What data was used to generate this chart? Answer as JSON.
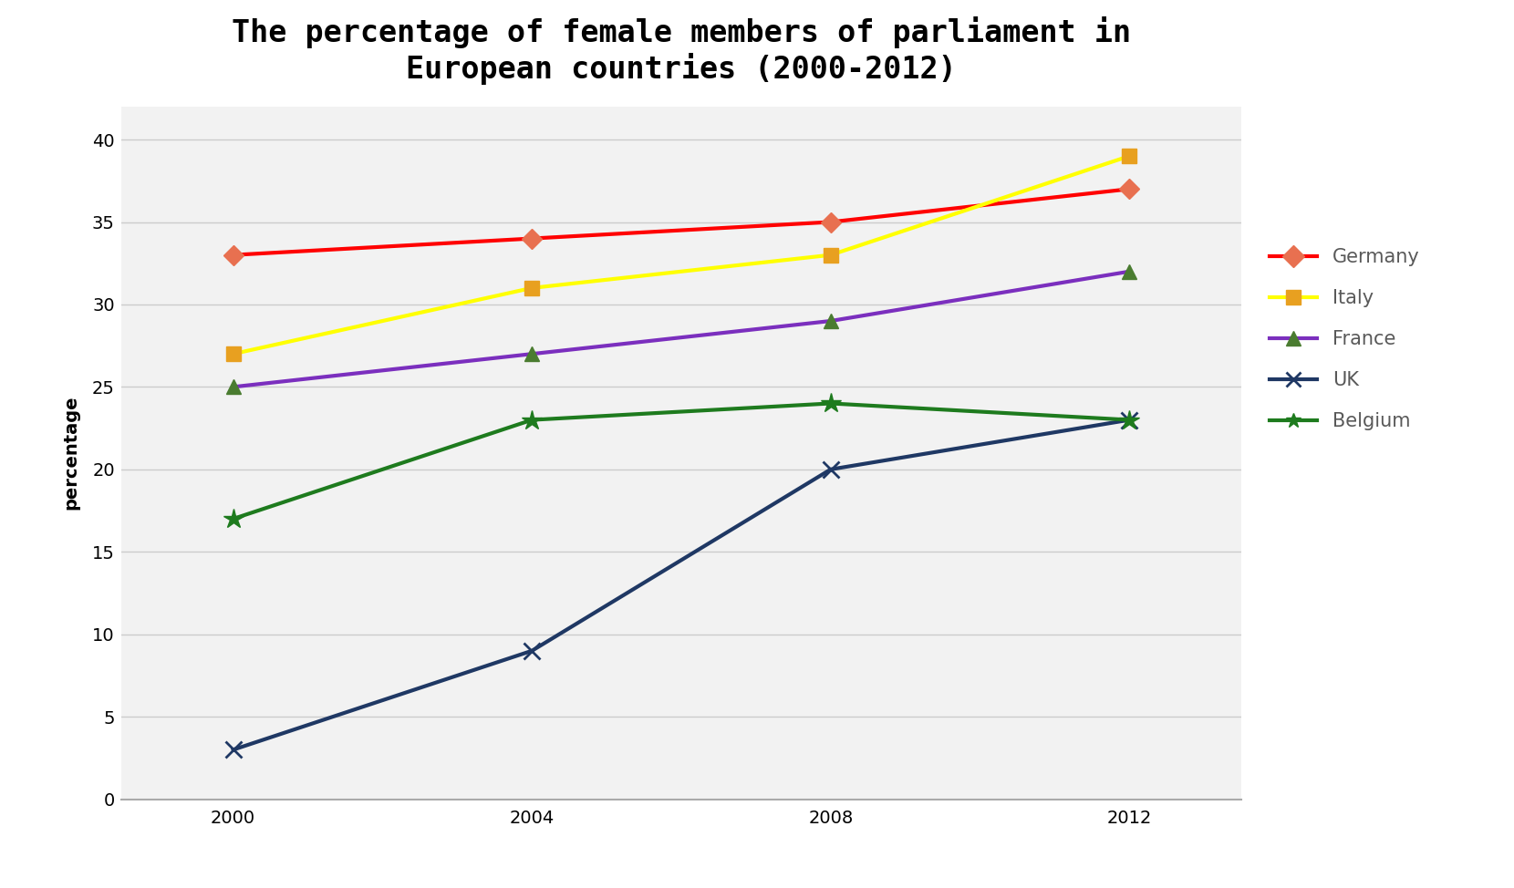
{
  "title": "The percentage of female members of parliament in\nEuropean countries (2000-2012)",
  "ylabel": "percentage",
  "years": [
    2000,
    2004,
    2008,
    2012
  ],
  "series": [
    {
      "label": "Germany",
      "values": [
        33,
        34,
        35,
        37
      ],
      "line_color": "#FF0000",
      "marker_color": "#E87050",
      "marker": "D",
      "markersize": 11,
      "linewidth": 3.0
    },
    {
      "label": "Italy",
      "values": [
        27,
        31,
        33,
        39
      ],
      "line_color": "#FFFF00",
      "marker_color": "#E8A020",
      "marker": "s",
      "markersize": 12,
      "linewidth": 3.0
    },
    {
      "label": "France",
      "values": [
        25,
        27,
        29,
        32
      ],
      "line_color": "#7B2FBE",
      "marker_color": "#4A7C30",
      "marker": "^",
      "markersize": 12,
      "linewidth": 3.0
    },
    {
      "label": "UK",
      "values": [
        3,
        9,
        20,
        23
      ],
      "line_color": "#1F3864",
      "marker_color": "#1F3864",
      "marker": "x",
      "markersize": 13,
      "linewidth": 3.0
    },
    {
      "label": "Belgium",
      "values": [
        17,
        23,
        24,
        23
      ],
      "line_color": "#1E7B1E",
      "marker_color": "#1E7B1E",
      "marker": "*",
      "markersize": 16,
      "linewidth": 3.0
    }
  ],
  "ylim": [
    0,
    42
  ],
  "yticks": [
    0,
    5,
    10,
    15,
    20,
    25,
    30,
    35,
    40
  ],
  "xticks": [
    2000,
    2004,
    2008,
    2012
  ],
  "background_color": "#FFFFFF",
  "plot_background": "#F2F2F2",
  "grid_color": "#CCCCCC",
  "title_fontsize": 24,
  "axis_label_fontsize": 14,
  "tick_fontsize": 14,
  "legend_fontsize": 15,
  "legend_text_color": "#595959"
}
